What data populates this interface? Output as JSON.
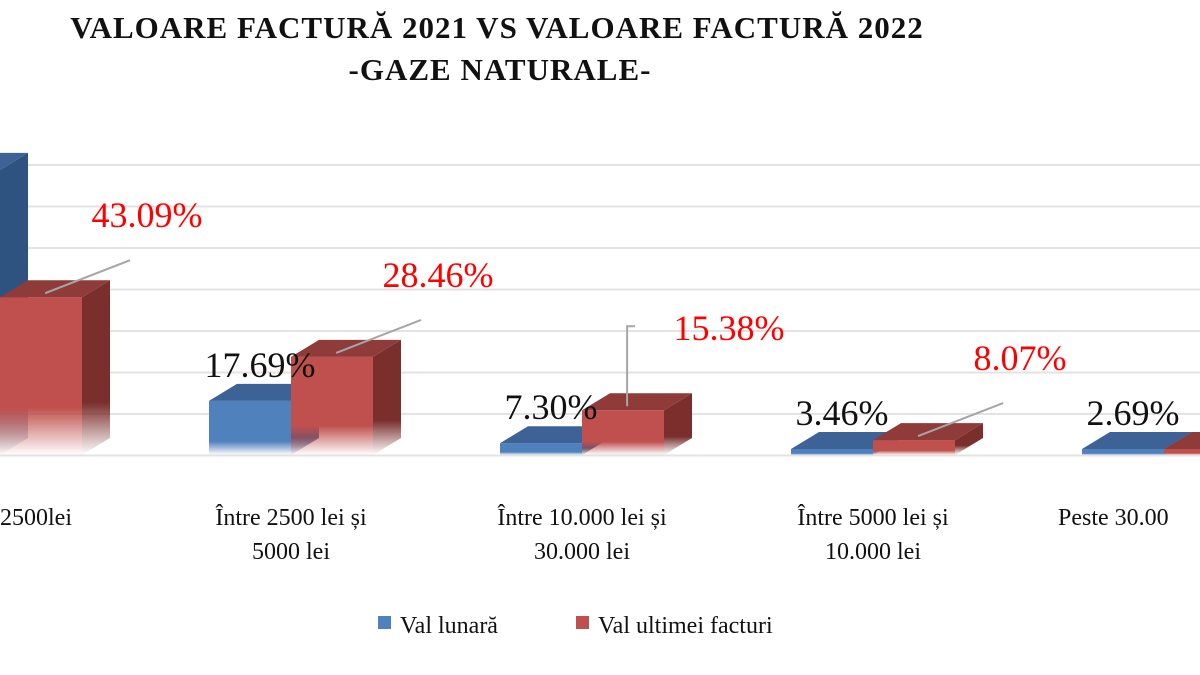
{
  "chart_data": {
    "type": "bar",
    "title": [
      "VALOARE FACTURĂ 2021 VS VALOARE FACTURĂ 2022",
      "-GAZE NATURALE-"
    ],
    "categories": [
      [
        "2500lei"
      ],
      [
        "Între 2500 lei și",
        "5000 lei"
      ],
      [
        "Între 10.000 lei și",
        "30.000 lei"
      ],
      [
        "Între 5000 lei și",
        "10.000 lei"
      ],
      [
        "Peste 30.00"
      ]
    ],
    "series": [
      {
        "name": "Val lunară",
        "color": "#4f81bd",
        "values": [
          74.3,
          17.69,
          7.3,
          3.46,
          2.69
        ],
        "labels": [
          "%",
          "17.69%",
          "7.30%",
          "3.46%",
          "2.69%"
        ],
        "label_color": "#111111"
      },
      {
        "name": "Val ultimei facturi",
        "color": "#c0504d",
        "values": [
          43.09,
          28.46,
          15.38,
          8.07,
          2.0
        ],
        "labels": [
          "43.09%",
          "28.46%",
          "15.38%",
          "8.07%",
          ""
        ],
        "label_color": "#ff0000"
      }
    ],
    "grid": true,
    "style": "3d-column",
    "legend": "bottom-center"
  }
}
